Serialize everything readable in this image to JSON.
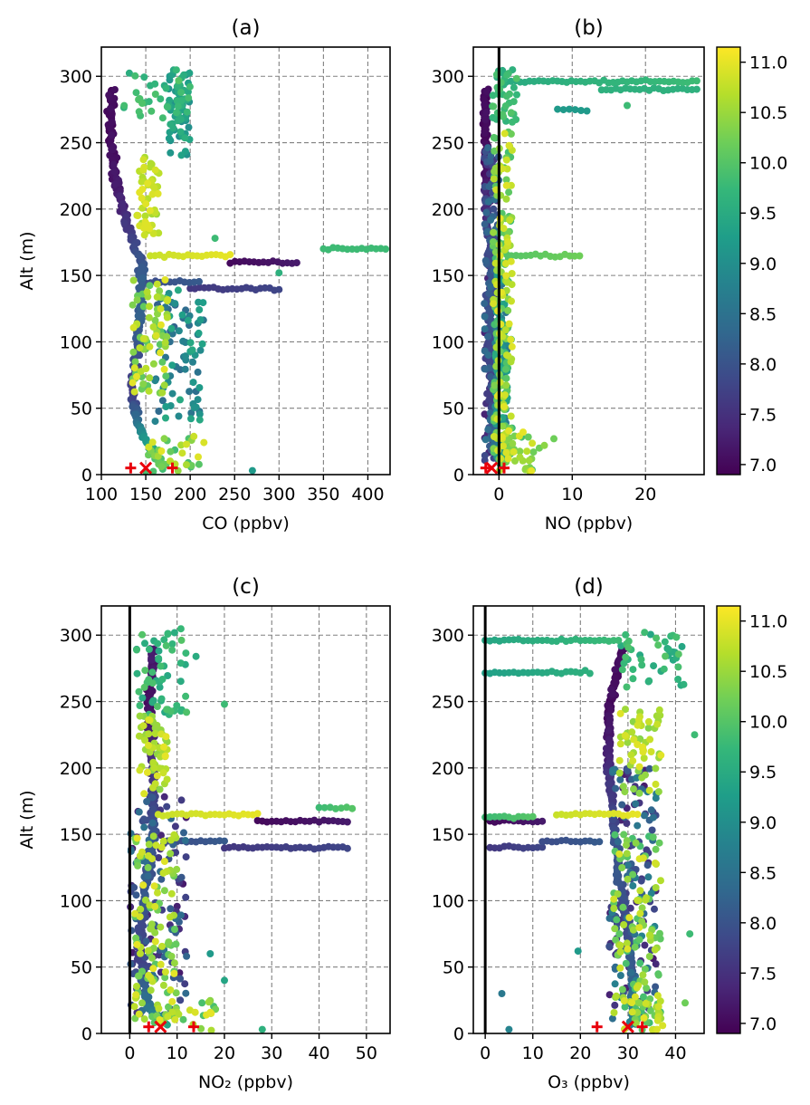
{
  "chart_data": [
    {
      "id": "a",
      "type": "scatter",
      "title": "(a)",
      "xlabel": "CO (ppbv)",
      "ylabel": "Alt (m)",
      "xlim": [
        100,
        425
      ],
      "ylim": [
        0,
        322
      ],
      "xticks": [
        100,
        150,
        200,
        250,
        300,
        350,
        400
      ],
      "yticks": [
        0,
        50,
        100,
        150,
        200,
        250,
        300
      ],
      "grid": true,
      "zero_line": null,
      "colorbar": false,
      "profile": [
        {
          "alt": 290,
          "x": 112,
          "c": 7.0
        },
        {
          "alt": 250,
          "x": 110,
          "c": 7.0
        },
        {
          "alt": 215,
          "x": 118,
          "c": 7.2
        },
        {
          "alt": 190,
          "x": 128,
          "c": 7.5
        },
        {
          "alt": 160,
          "x": 145,
          "c": 8.0
        },
        {
          "alt": 130,
          "x": 145,
          "c": 8.2
        },
        {
          "alt": 100,
          "x": 140,
          "c": 8.0
        },
        {
          "alt": 60,
          "x": 135,
          "c": 7.6
        },
        {
          "alt": 40,
          "x": 140,
          "c": 8.5
        },
        {
          "alt": 20,
          "x": 155,
          "c": 9.5
        },
        {
          "alt": 5,
          "x": 170,
          "c": 10.3
        }
      ],
      "clusters": [
        {
          "alt": [
            265,
            305
          ],
          "x": [
            125,
            200
          ],
          "c": [
            9.5,
            10.0
          ]
        },
        {
          "alt": [
            180,
            240
          ],
          "x": [
            140,
            165
          ],
          "c": [
            10.5,
            11.0
          ]
        },
        {
          "alt": [
            60,
            150
          ],
          "x": [
            135,
            175
          ],
          "c": [
            10.0,
            11.0
          ]
        },
        {
          "alt": [
            40,
            140
          ],
          "x": [
            160,
            215
          ],
          "c": [
            8.2,
            9.5
          ]
        },
        {
          "alt": [
            2,
            30
          ],
          "x": [
            150,
            220
          ],
          "c": [
            9.8,
            11.0
          ]
        },
        {
          "alt": [
            240,
            305
          ],
          "x": [
            175,
            200
          ],
          "c": [
            9.0,
            9.6
          ]
        }
      ],
      "horizontal_bands": [
        {
          "alt": 165,
          "x": [
            155,
            245
          ],
          "c": [
            10.8,
            11.0
          ]
        },
        {
          "alt": 160,
          "x": [
            245,
            320
          ],
          "c": [
            7.0,
            7.2
          ]
        },
        {
          "alt": 140,
          "x": [
            200,
            300
          ],
          "c": [
            7.6,
            7.8
          ]
        },
        {
          "alt": 170,
          "x": [
            350,
            420
          ],
          "c": [
            9.8,
            9.8
          ]
        },
        {
          "alt": 145,
          "x": [
            150,
            210
          ],
          "c": [
            7.9,
            8.1
          ]
        }
      ],
      "extra_points": [
        {
          "x": 270,
          "alt": 3,
          "c": 9.2
        },
        {
          "x": 300,
          "alt": 152,
          "c": 9.6
        },
        {
          "x": 228,
          "alt": 178,
          "c": 9.8
        }
      ],
      "markers": [
        {
          "symbol": "plus",
          "x": 133,
          "alt": 5
        },
        {
          "symbol": "cross",
          "x": 150,
          "alt": 5
        },
        {
          "symbol": "plus",
          "x": 180,
          "alt": 5
        }
      ]
    },
    {
      "id": "b",
      "type": "scatter",
      "title": "(b)",
      "xlabel": "NO (ppbv)",
      "ylabel": "",
      "xlim": [
        -3.5,
        28
      ],
      "ylim": [
        0,
        322
      ],
      "xticks": [
        0,
        10,
        20
      ],
      "yticks": [
        0,
        50,
        100,
        150,
        200,
        250,
        300
      ],
      "grid": true,
      "zero_line": 0,
      "colorbar": true,
      "profile": [
        {
          "alt": 290,
          "x": -1.8,
          "c": 7.0
        },
        {
          "alt": 230,
          "x": -1.8,
          "c": 7.0
        },
        {
          "alt": 190,
          "x": -1.5,
          "c": 7.5
        },
        {
          "alt": 150,
          "x": -1.0,
          "c": 8.0
        },
        {
          "alt": 100,
          "x": -1.2,
          "c": 7.8
        },
        {
          "alt": 60,
          "x": -1.0,
          "c": 7.6
        },
        {
          "alt": 20,
          "x": -0.5,
          "c": 8.5
        },
        {
          "alt": 5,
          "x": 0.5,
          "c": 9.5
        }
      ],
      "clusters": [
        {
          "alt": [
            265,
            305
          ],
          "x": [
            -1.0,
            2.5
          ],
          "c": [
            9.5,
            10.0
          ]
        },
        {
          "alt": [
            10,
            260
          ],
          "x": [
            -0.8,
            1.8
          ],
          "c": [
            9.8,
            11.0
          ]
        },
        {
          "alt": [
            10,
            250
          ],
          "x": [
            -2.0,
            0.0
          ],
          "c": [
            7.2,
            8.5
          ]
        },
        {
          "alt": [
            2,
            30
          ],
          "x": [
            0.0,
            5.0
          ],
          "c": [
            9.8,
            11.0
          ]
        },
        {
          "alt": [
            10,
            160
          ],
          "x": [
            -0.5,
            1.2
          ],
          "c": [
            8.5,
            9.5
          ]
        }
      ],
      "horizontal_bands": [
        {
          "alt": 296,
          "x": [
            1,
            27
          ],
          "c": [
            9.5,
            9.8
          ]
        },
        {
          "alt": 290,
          "x": [
            14,
            27
          ],
          "c": [
            9.6,
            9.6
          ]
        },
        {
          "alt": 275,
          "x": [
            8,
            12
          ],
          "c": [
            9.2,
            9.2
          ]
        },
        {
          "alt": 165,
          "x": [
            1,
            11
          ],
          "c": [
            10.0,
            10.2
          ]
        }
      ],
      "extra_points": [
        {
          "x": 17.5,
          "alt": 278,
          "c": 9.8
        },
        {
          "x": 7.5,
          "alt": 27,
          "c": 10.2
        },
        {
          "x": 6.2,
          "alt": 22,
          "c": 10.4
        },
        {
          "x": 5.5,
          "alt": 20,
          "c": 10.2
        },
        {
          "x": 3.3,
          "alt": 32,
          "c": 11.0
        },
        {
          "x": 4.0,
          "alt": 4,
          "c": 10.3
        }
      ],
      "markers": [
        {
          "symbol": "plus",
          "x": -1.8,
          "alt": 5
        },
        {
          "symbol": "cross",
          "x": -1.0,
          "alt": 5
        },
        {
          "symbol": "plus",
          "x": 0.7,
          "alt": 5
        }
      ]
    },
    {
      "id": "c",
      "type": "scatter",
      "title": "(c)",
      "xlabel": "NO₂ (ppbv)",
      "ylabel": "Alt (m)",
      "xlim": [
        -6,
        55
      ],
      "ylim": [
        0,
        322
      ],
      "xticks": [
        0,
        10,
        20,
        30,
        40,
        50
      ],
      "yticks": [
        0,
        50,
        100,
        150,
        200,
        250,
        300
      ],
      "grid": true,
      "zero_line": 0,
      "colorbar": false,
      "profile": [
        {
          "alt": 290,
          "x": 5,
          "c": 7.2
        },
        {
          "alt": 248,
          "x": 4,
          "c": 7.0
        },
        {
          "alt": 200,
          "x": 5,
          "c": 7.5
        },
        {
          "alt": 150,
          "x": 5,
          "c": 8.0
        },
        {
          "alt": 100,
          "x": 3,
          "c": 8.0
        },
        {
          "alt": 60,
          "x": 2,
          "c": 7.6
        },
        {
          "alt": 20,
          "x": 4,
          "c": 8.5
        },
        {
          "alt": 5,
          "x": 8,
          "c": 9.5
        }
      ],
      "clusters": [
        {
          "alt": [
            240,
            305
          ],
          "x": [
            1,
            12
          ],
          "c": [
            9.4,
            10.0
          ]
        },
        {
          "alt": [
            180,
            240
          ],
          "x": [
            2,
            8
          ],
          "c": [
            10.3,
            11.0
          ]
        },
        {
          "alt": [
            10,
            150
          ],
          "x": [
            1,
            10
          ],
          "c": [
            10.0,
            11.0
          ]
        },
        {
          "alt": [
            10,
            180
          ],
          "x": [
            0,
            12
          ],
          "c": [
            7.2,
            8.5
          ]
        },
        {
          "alt": [
            2,
            25
          ],
          "x": [
            5,
            20
          ],
          "c": [
            9.8,
            11.0
          ]
        }
      ],
      "horizontal_bands": [
        {
          "alt": 165,
          "x": [
            6,
            27
          ],
          "c": [
            10.8,
            11.0
          ]
        },
        {
          "alt": 160,
          "x": [
            27,
            46
          ],
          "c": [
            7.0,
            7.2
          ]
        },
        {
          "alt": 140,
          "x": [
            20,
            46
          ],
          "c": [
            7.6,
            7.8
          ]
        },
        {
          "alt": 170,
          "x": [
            40,
            47
          ],
          "c": [
            9.8,
            10.0
          ]
        },
        {
          "alt": 145,
          "x": [
            8,
            20
          ],
          "c": [
            7.9,
            8.1
          ]
        }
      ],
      "extra_points": [
        {
          "x": 20,
          "alt": 248,
          "c": 9.8
        },
        {
          "x": 14,
          "alt": 284,
          "c": 9.5
        },
        {
          "x": 17,
          "alt": 60,
          "c": 9.2
        },
        {
          "x": 20,
          "alt": 40,
          "c": 9.4
        },
        {
          "x": 28,
          "alt": 3,
          "c": 9.6
        }
      ],
      "markers": [
        {
          "symbol": "plus",
          "x": 4,
          "alt": 5
        },
        {
          "symbol": "cross",
          "x": 6.5,
          "alt": 5
        },
        {
          "symbol": "plus",
          "x": 13.5,
          "alt": 5
        }
      ]
    },
    {
      "id": "d",
      "type": "scatter",
      "title": "(d)",
      "xlabel": "O₃ (ppbv)",
      "ylabel": "",
      "xlim": [
        -2.5,
        46
      ],
      "ylim": [
        0,
        322
      ],
      "xticks": [
        0,
        10,
        20,
        30,
        40
      ],
      "yticks": [
        0,
        50,
        100,
        150,
        200,
        250,
        300
      ],
      "grid": true,
      "zero_line": 0,
      "colorbar": true,
      "profile": [
        {
          "alt": 290,
          "x": 29,
          "c": 7.0
        },
        {
          "alt": 245,
          "x": 26,
          "c": 7.0
        },
        {
          "alt": 200,
          "x": 26,
          "c": 7.4
        },
        {
          "alt": 160,
          "x": 27,
          "c": 7.8
        },
        {
          "alt": 120,
          "x": 28,
          "c": 8.0
        },
        {
          "alt": 80,
          "x": 30,
          "c": 7.8
        },
        {
          "alt": 40,
          "x": 31,
          "c": 8.2
        },
        {
          "alt": 5,
          "x": 31,
          "c": 8.8
        }
      ],
      "clusters": [
        {
          "alt": [
            260,
            305
          ],
          "x": [
            28,
            42
          ],
          "c": [
            9.4,
            10.0
          ]
        },
        {
          "alt": [
            180,
            245
          ],
          "x": [
            28,
            37
          ],
          "c": [
            10.3,
            11.0
          ]
        },
        {
          "alt": [
            10,
            150
          ],
          "x": [
            27,
            37
          ],
          "c": [
            9.8,
            11.0
          ]
        },
        {
          "alt": [
            10,
            200
          ],
          "x": [
            26,
            36
          ],
          "c": [
            7.2,
            8.8
          ]
        },
        {
          "alt": [
            2,
            30
          ],
          "x": [
            29,
            38
          ],
          "c": [
            9.8,
            11.0
          ]
        }
      ],
      "horizontal_bands": [
        {
          "alt": 296,
          "x": [
            0,
            28
          ],
          "c": [
            9.4,
            9.8
          ]
        },
        {
          "alt": 272,
          "x": [
            0,
            22
          ],
          "c": [
            9.3,
            9.6
          ]
        },
        {
          "alt": 165,
          "x": [
            15,
            32
          ],
          "c": [
            10.8,
            11.0
          ]
        },
        {
          "alt": 160,
          "x": [
            1,
            12
          ],
          "c": [
            7.0,
            7.2
          ]
        },
        {
          "alt": 140,
          "x": [
            1,
            12
          ],
          "c": [
            7.6,
            7.8
          ]
        },
        {
          "alt": 163,
          "x": [
            0,
            10
          ],
          "c": [
            9.8,
            10.0
          ]
        },
        {
          "alt": 145,
          "x": [
            12,
            24
          ],
          "c": [
            7.9,
            8.1
          ]
        }
      ],
      "extra_points": [
        {
          "x": 44,
          "alt": 225,
          "c": 9.8
        },
        {
          "x": 42,
          "alt": 23,
          "c": 10.2
        },
        {
          "x": 43,
          "alt": 75,
          "c": 9.8
        },
        {
          "x": 3.5,
          "alt": 30,
          "c": 8.6
        },
        {
          "x": 19.5,
          "alt": 62,
          "c": 9.2
        },
        {
          "x": 5,
          "alt": 3,
          "c": 8.8
        }
      ],
      "markers": [
        {
          "symbol": "plus",
          "x": 23.5,
          "alt": 5
        },
        {
          "symbol": "cross",
          "x": 30,
          "alt": 5
        },
        {
          "symbol": "plus",
          "x": 33,
          "alt": 5
        }
      ]
    }
  ],
  "colorbar": {
    "range": [
      6.9,
      11.15
    ],
    "ticks": [
      "7.0",
      "7.5",
      "8.0",
      "8.5",
      "9.0",
      "9.5",
      "10.0",
      "10.5",
      "11.0"
    ],
    "colormap": "viridis",
    "stops": [
      "#440154",
      "#482878",
      "#3e4989",
      "#31688e",
      "#26828e",
      "#1f9e89",
      "#35b779",
      "#6ece58",
      "#b5de2b",
      "#fde725"
    ]
  },
  "colors": {
    "marker": "#e8000b",
    "zero_line": "#000000",
    "grid": "#808080"
  }
}
